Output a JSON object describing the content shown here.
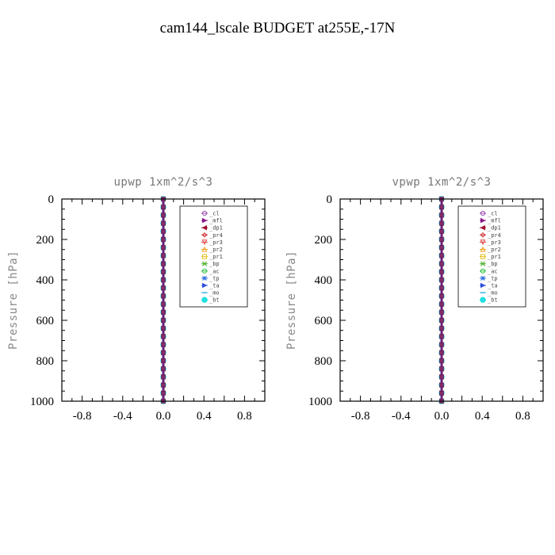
{
  "page": {
    "title": "cam144_lscale  BUDGET at255E,-17N"
  },
  "legend_entries": [
    {
      "label": "_cl",
      "color": "#9a4fb0",
      "marker": "circle"
    },
    {
      "label": "_mfl",
      "color": "#8b1a8b",
      "marker": "triangle-right"
    },
    {
      "label": "_dp1",
      "color": "#a01030",
      "marker": "triangle-left"
    },
    {
      "label": "_pr4",
      "color": "#d03030",
      "marker": "diamond"
    },
    {
      "label": "_pr3",
      "color": "#e04040",
      "marker": "triangle-down"
    },
    {
      "label": "_pr2",
      "color": "#f0a020",
      "marker": "triangle-up"
    },
    {
      "label": "_pr1",
      "color": "#e8c020",
      "marker": "square"
    },
    {
      "label": "_bp",
      "color": "#50b030",
      "marker": "x"
    },
    {
      "label": "_ac",
      "color": "#30c040",
      "marker": "circle"
    },
    {
      "label": "_tp",
      "color": "#3070e0",
      "marker": "star"
    },
    {
      "label": "_ta",
      "color": "#3050e0",
      "marker": "triangle-right"
    },
    {
      "label": "_mo",
      "color": "#30b0e0",
      "marker": "dash"
    },
    {
      "label": "_bt",
      "color": "#20e0e0",
      "marker": "circle-filled"
    }
  ],
  "chart_data": [
    {
      "type": "line",
      "title": "upwp   1xm^2/s^3",
      "xlabel": "",
      "ylabel": "Pressure  [hPa]",
      "xlim": [
        -1.0,
        1.0
      ],
      "ylim": [
        1000,
        0
      ],
      "xticks": [
        "-0.8",
        "-0.4",
        "0.0",
        "0.4",
        "0.8"
      ],
      "yticks": [
        "0",
        "200",
        "400",
        "600",
        "800",
        "1000"
      ],
      "legend_position": "top-right",
      "pressure_levels": [
        0,
        40,
        80,
        120,
        160,
        200,
        240,
        280,
        320,
        360,
        400,
        440,
        480,
        520,
        560,
        600,
        640,
        680,
        720,
        760,
        800,
        840,
        880,
        920,
        960,
        1000
      ],
      "series": [
        {
          "name": "_cl",
          "value": 0.0
        },
        {
          "name": "_mfl",
          "value": 0.0
        },
        {
          "name": "_dp1",
          "value": 0.0
        },
        {
          "name": "_pr4",
          "value": 0.0
        },
        {
          "name": "_pr3",
          "value": 0.0
        },
        {
          "name": "_pr2",
          "value": 0.0
        },
        {
          "name": "_pr1",
          "value": 0.0
        },
        {
          "name": "_bp",
          "value": 0.0
        },
        {
          "name": "_ac",
          "value": 0.0
        },
        {
          "name": "_tp",
          "value": 0.0
        },
        {
          "name": "_ta",
          "value": 0.0
        },
        {
          "name": "_mo",
          "value": 0.0
        },
        {
          "name": "_bt",
          "value": 0.0
        }
      ]
    },
    {
      "type": "line",
      "title": "vpwp   1xm^2/s^3",
      "xlabel": "",
      "ylabel": "Pressure  [hPa]",
      "xlim": [
        -1.0,
        1.0
      ],
      "ylim": [
        1000,
        0
      ],
      "xticks": [
        "-0.8",
        "-0.4",
        "0.0",
        "0.4",
        "0.8"
      ],
      "yticks": [
        "0",
        "200",
        "400",
        "600",
        "800",
        "1000"
      ],
      "legend_position": "top-right",
      "pressure_levels": [
        0,
        40,
        80,
        120,
        160,
        200,
        240,
        280,
        320,
        360,
        400,
        440,
        480,
        520,
        560,
        600,
        640,
        680,
        720,
        760,
        800,
        840,
        880,
        920,
        960,
        1000
      ],
      "series": [
        {
          "name": "_cl",
          "value": 0.0
        },
        {
          "name": "_mfl",
          "value": 0.0
        },
        {
          "name": "_dp1",
          "value": 0.0
        },
        {
          "name": "_pr4",
          "value": 0.0
        },
        {
          "name": "_pr3",
          "value": 0.0
        },
        {
          "name": "_pr2",
          "value": 0.0
        },
        {
          "name": "_pr1",
          "value": 0.0
        },
        {
          "name": "_bp",
          "value": 0.0
        },
        {
          "name": "_ac",
          "value": 0.0
        },
        {
          "name": "_tp",
          "value": 0.0
        },
        {
          "name": "_ta",
          "value": 0.0
        },
        {
          "name": "_mo",
          "value": 0.0
        },
        {
          "name": "_bt",
          "value": 0.0
        }
      ]
    }
  ]
}
